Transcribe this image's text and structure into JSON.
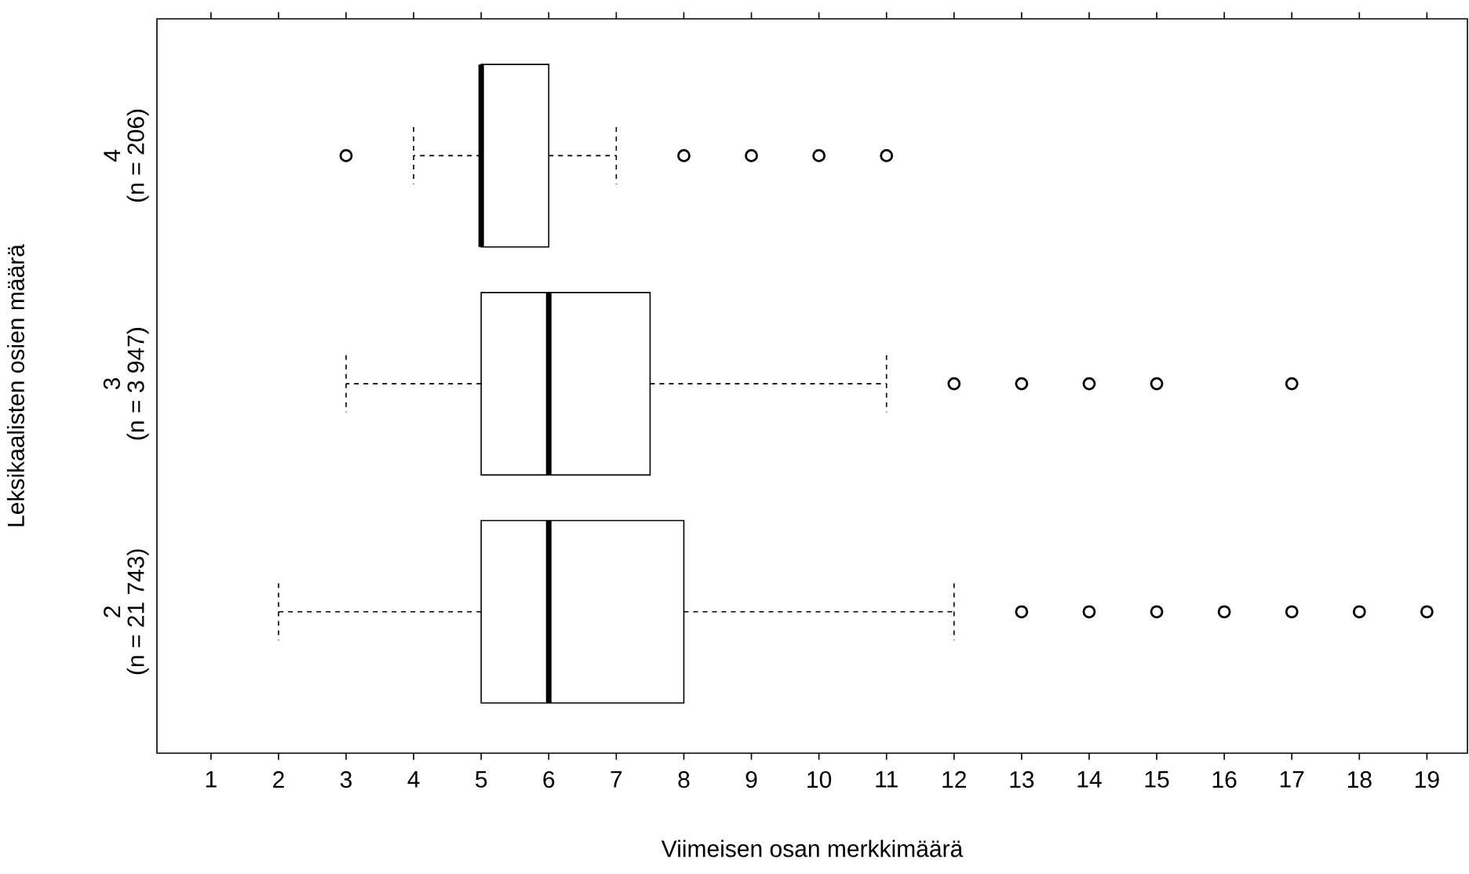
{
  "chart_data": {
    "type": "box",
    "orientation": "horizontal",
    "xlabel": "Viimeisen osan merkkimäärä",
    "ylabel": "Leksikaalisten osien määrä",
    "categories": [
      "4",
      "3",
      "2"
    ],
    "boxes": [
      {
        "low": 4,
        "q1": 5,
        "median": 5,
        "q3": 6,
        "high": 7,
        "outliers": [
          3,
          8,
          9,
          10,
          11
        ]
      },
      {
        "low": 3,
        "q1": 5,
        "median": 6,
        "q3": 7.5,
        "high": 11,
        "outliers": [
          12,
          13,
          14,
          15,
          17
        ]
      },
      {
        "low": 2,
        "q1": 5,
        "median": 6,
        "q3": 8,
        "high": 12,
        "outliers": [
          13,
          14,
          15,
          16,
          17,
          18,
          19
        ]
      }
    ],
    "xlim": [
      0.2,
      19.6
    ],
    "xticks": [
      1,
      2,
      3,
      4,
      5,
      6,
      7,
      8,
      9,
      10,
      11,
      12,
      13,
      14,
      15,
      16,
      17,
      18,
      19
    ],
    "annotations": [
      "(n = 206)",
      "(n = 3 947)",
      "(n = 21 743)"
    ]
  }
}
